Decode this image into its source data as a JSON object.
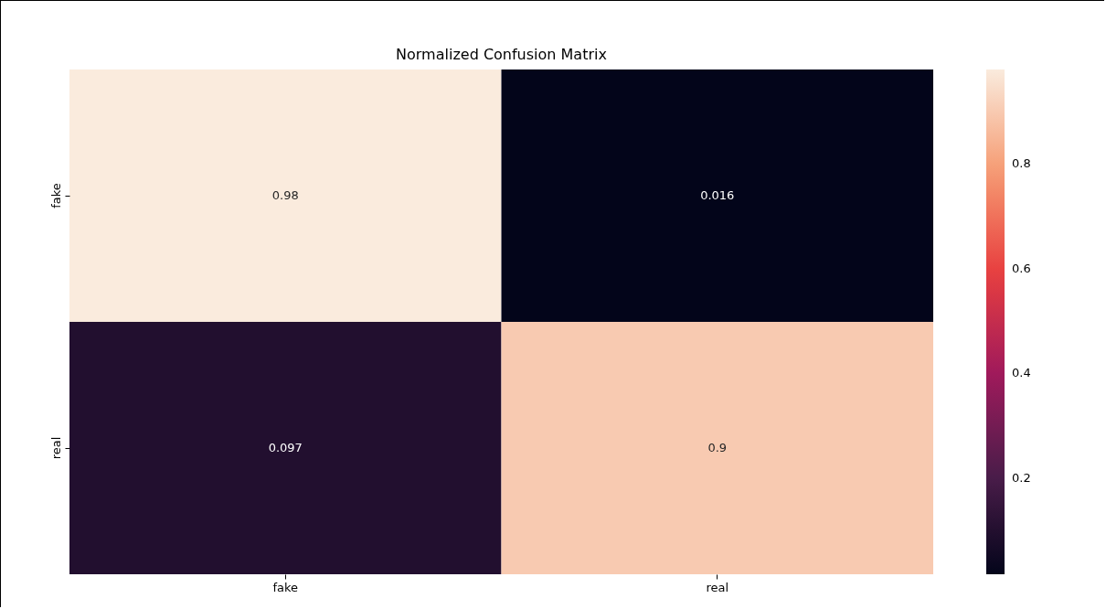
{
  "chart_data": {
    "type": "heatmap",
    "title": "Normalized Confusion Matrix",
    "categories": [
      "fake",
      "real"
    ],
    "y_categories": [
      "fake",
      "real"
    ],
    "cells": [
      [
        0.98,
        0.016
      ],
      [
        0.097,
        0.9
      ]
    ],
    "data_labels": true,
    "clim": [
      0.016,
      0.98
    ],
    "cticks": [
      0.2,
      0.4,
      0.6,
      0.8
    ]
  }
}
